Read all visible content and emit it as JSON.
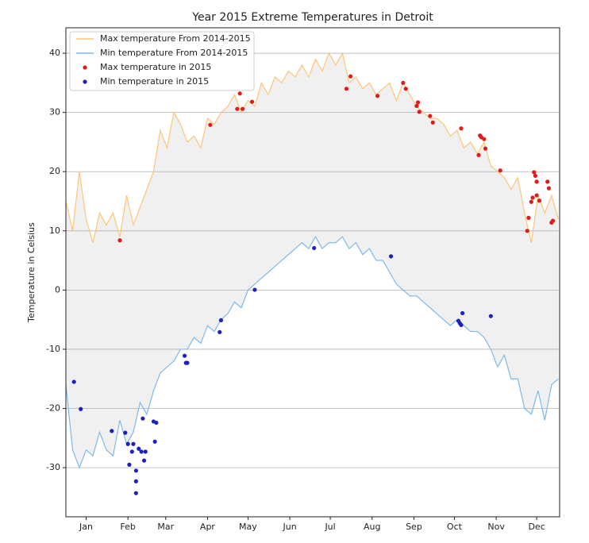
{
  "chart_data": {
    "type": "line",
    "title": "Year 2015 Extreme Temperatures in Detroit",
    "ylabel": "Temperature in Celsius",
    "x": [
      0,
      5,
      10,
      15,
      20,
      25,
      30,
      35,
      40,
      45,
      50,
      55,
      60,
      65,
      70,
      75,
      80,
      85,
      90,
      95,
      100,
      105,
      110,
      115,
      120,
      125,
      130,
      135,
      140,
      145,
      150,
      155,
      160,
      165,
      170,
      175,
      180,
      185,
      190,
      195,
      200,
      205,
      210,
      215,
      220,
      225,
      230,
      235,
      240,
      245,
      250,
      255,
      260,
      265,
      270,
      275,
      280,
      285,
      290,
      295,
      300,
      305,
      310,
      315,
      320,
      325,
      330,
      335,
      340,
      345,
      350,
      355,
      360,
      365
    ],
    "series": [
      {
        "name": "Max temperature From 2014-2015",
        "type": "line",
        "color": "#fdc57a",
        "values": [
          15,
          10,
          20,
          12,
          8,
          13,
          11,
          13,
          9,
          16,
          11,
          14,
          17,
          20,
          27,
          24,
          30,
          28,
          25,
          26,
          24,
          29,
          28,
          30,
          31,
          33,
          30,
          32,
          31,
          35,
          33,
          36,
          35,
          37,
          36,
          38,
          36,
          39,
          37,
          40,
          38,
          40,
          35,
          36,
          34,
          35,
          33,
          34,
          35,
          32,
          35,
          33,
          31,
          30,
          29,
          29,
          28,
          26,
          27,
          24,
          25,
          23,
          25,
          21,
          20,
          19,
          17,
          19,
          13,
          8,
          16,
          13,
          16,
          12
        ]
      },
      {
        "name": "Min temperature From 2014-2015",
        "type": "line",
        "color": "#7fb9e8",
        "values": [
          -16,
          -27,
          -30,
          -27,
          -28,
          -24,
          -27,
          -28,
          -22,
          -26,
          -24,
          -19,
          -21,
          -17,
          -14,
          -13,
          -12,
          -10,
          -10,
          -8,
          -9,
          -6,
          -7,
          -5,
          -4,
          -2,
          -3,
          0,
          1,
          2,
          3,
          4,
          5,
          6,
          7,
          8,
          7,
          9,
          7,
          8,
          8,
          9,
          7,
          8,
          6,
          7,
          5,
          5,
          3,
          1,
          0,
          -1,
          -1,
          -2,
          -3,
          -4,
          -5,
          -6,
          -5,
          -6,
          -7,
          -7,
          -8,
          -10,
          -13,
          -11,
          -15,
          -15,
          -20,
          -21,
          -17,
          -22,
          -16,
          -15
        ]
      },
      {
        "name": "Max temperature in 2015",
        "type": "scatter",
        "color": "#e31a1c",
        "x": [
          40,
          107,
          127,
          131,
          129,
          138,
          208,
          211,
          231,
          250,
          252,
          260,
          261,
          262,
          270,
          272,
          293,
          306,
          307,
          308,
          310,
          311,
          322,
          342,
          343,
          345,
          346,
          347,
          348,
          349,
          349,
          351,
          357,
          358,
          360,
          361
        ],
        "values": [
          8.4,
          27.9,
          30.6,
          30.6,
          33.2,
          31.8,
          34,
          36.1,
          32.8,
          35,
          34,
          31.1,
          31.7,
          30.1,
          29.4,
          28.3,
          27.3,
          22.8,
          26.1,
          25.8,
          25.5,
          23.9,
          20.2,
          10,
          12.2,
          14.9,
          15.6,
          19.9,
          19.3,
          18.3,
          16,
          15.1,
          18.3,
          17.2,
          11.4,
          11.7
        ]
      },
      {
        "name": "Min temperature in 2015",
        "type": "scatter",
        "color": "#1f1fbf",
        "x": [
          6,
          11,
          34,
          44,
          46,
          47,
          49,
          50,
          52,
          52,
          52,
          54,
          56,
          57,
          58,
          59,
          65,
          67,
          66,
          88,
          89,
          90,
          114,
          115,
          140,
          184,
          241,
          291,
          292,
          293,
          294,
          315
        ],
        "values": [
          -15.5,
          -20.1,
          -23.8,
          -24.1,
          -26,
          -29.5,
          -27.3,
          -26,
          -30.5,
          -32.3,
          -34.3,
          -26.8,
          -27.3,
          -21.7,
          -28.8,
          -27.3,
          -22.2,
          -22.4,
          -25.6,
          -11.1,
          -12.3,
          -12.3,
          -7.1,
          -5.1,
          0.04,
          7.1,
          5.7,
          -5.2,
          -5.6,
          -5.9,
          -3.9,
          -4.4
        ]
      }
    ],
    "xlim": [
      0,
      366
    ],
    "xticks": [
      {
        "value": 15,
        "label": "Jan"
      },
      {
        "value": 46,
        "label": "Feb"
      },
      {
        "value": 74,
        "label": "Mar"
      },
      {
        "value": 105,
        "label": "Apr"
      },
      {
        "value": 135,
        "label": "May"
      },
      {
        "value": 166,
        "label": "Jun"
      },
      {
        "value": 196,
        "label": "Jul"
      },
      {
        "value": 227,
        "label": "Aug"
      },
      {
        "value": 258,
        "label": "Sep"
      },
      {
        "value": 288,
        "label": "Oct"
      },
      {
        "value": 319,
        "label": "Nov"
      },
      {
        "value": 349,
        "label": "Dec"
      }
    ],
    "ylim": [
      -38.3,
      44.3
    ],
    "yticks": [
      -30,
      -20,
      -10,
      0,
      10,
      20,
      30,
      40
    ],
    "grid": true,
    "fill_between": "#f0f0f0",
    "legend": "upper-left"
  }
}
